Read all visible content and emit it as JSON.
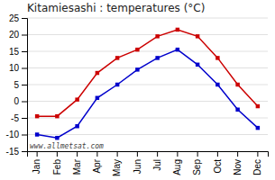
{
  "chart_data": {
    "type": "line",
    "title": "Kitamiesashi : temperatures (°C)",
    "categories": [
      "Jan",
      "Feb",
      "Mar",
      "Apr",
      "May",
      "Jun",
      "Jul",
      "Aug",
      "Sep",
      "Oct",
      "Nov",
      "Dec"
    ],
    "series": [
      {
        "color": "#cc0000",
        "marker": "square",
        "line_style": "solid",
        "values": [
          -4.5,
          -4.5,
          0.5,
          8.5,
          13.0,
          15.5,
          19.5,
          21.5,
          19.5,
          13.0,
          5.0,
          -1.5
        ]
      },
      {
        "color": "#0000cc",
        "marker": "square",
        "line_style": "solid",
        "values": [
          -10.0,
          -11.0,
          -7.5,
          1.0,
          5.0,
          9.5,
          13.0,
          15.5,
          11.0,
          5.0,
          -2.5,
          -8.0
        ]
      }
    ],
    "ylim": [
      -15,
      25
    ],
    "yticks": [
      -15,
      -10,
      -5,
      0,
      5,
      10,
      15,
      20,
      25
    ],
    "grid": true,
    "annotation": "www.allmetsat.com"
  }
}
